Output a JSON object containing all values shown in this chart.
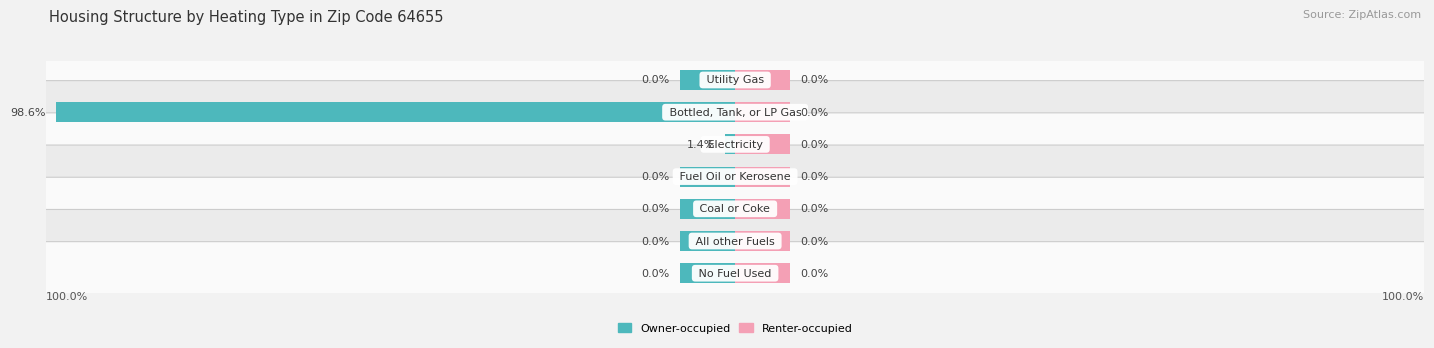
{
  "title": "Housing Structure by Heating Type in Zip Code 64655",
  "source": "Source: ZipAtlas.com",
  "categories": [
    "Utility Gas",
    "Bottled, Tank, or LP Gas",
    "Electricity",
    "Fuel Oil or Kerosene",
    "Coal or Coke",
    "All other Fuels",
    "No Fuel Used"
  ],
  "owner_values": [
    0.0,
    98.6,
    1.4,
    0.0,
    0.0,
    0.0,
    0.0
  ],
  "renter_values": [
    0.0,
    0.0,
    0.0,
    0.0,
    0.0,
    0.0,
    0.0
  ],
  "owner_color": "#4db8bc",
  "renter_color": "#f4a0b5",
  "background_color": "#f2f2f2",
  "row_bg_light": "#fafafa",
  "row_bg_dark": "#ebebeb",
  "row_border_color": "#cccccc",
  "title_fontsize": 10.5,
  "source_fontsize": 8,
  "label_fontsize": 8,
  "cat_fontsize": 8,
  "axis_max": 100.0,
  "stub_size": 8.0,
  "bar_height": 0.62
}
